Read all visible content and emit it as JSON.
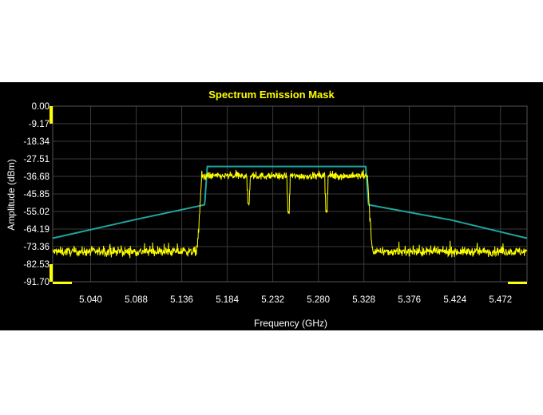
{
  "chart_data": {
    "type": "line",
    "title": "Spectrum Emission Mask",
    "xlabel": "Frequency (GHz)",
    "ylabel": "Amplitude (dBm)",
    "xlim": [
      5.0,
      5.5
    ],
    "ylim": [
      -91.7,
      0.0
    ],
    "x_ticks": [
      "5.040",
      "5.088",
      "5.136",
      "5.184",
      "5.232",
      "5.280",
      "5.328",
      "5.376",
      "5.424",
      "5.472"
    ],
    "y_ticks": [
      "0.00",
      "-9.17",
      "-18.34",
      "-27.51",
      "-36.68",
      "-45.85",
      "-55.02",
      "-64.19",
      "-73.36",
      "-82.53",
      "-91.70"
    ],
    "grid": true,
    "colors": {
      "background": "#000000",
      "grid": "#3a3a3a",
      "signal": "#ffff00",
      "mask": "#1fa5a0",
      "title": "#ffff00",
      "markers": "#ffff00"
    },
    "series": [
      {
        "role": "mask",
        "x": [
          5.0,
          5.085,
          5.16,
          5.1605,
          5.163,
          5.33,
          5.3325,
          5.333,
          5.42,
          5.5
        ],
        "y": [
          -69.0,
          -59.5,
          -51.5,
          -49.0,
          -31.5,
          -31.5,
          -49.0,
          -51.5,
          -59.5,
          -69.0
        ]
      },
      {
        "role": "signal",
        "noise_floor": -76.0,
        "passband_level": -36.5,
        "passband_edges": [
          5.157,
          5.332
        ],
        "dips": [
          {
            "x": 5.2065,
            "y": -51.0
          },
          {
            "x": 5.2485,
            "y": -55.5
          },
          {
            "x": 5.2885,
            "y": -55.0
          }
        ]
      }
    ]
  }
}
